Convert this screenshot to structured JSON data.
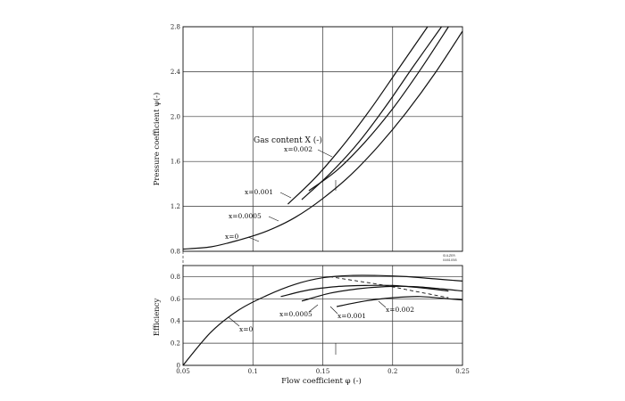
{
  "chart_data": [
    {
      "type": "line",
      "panel": "upper",
      "title": "",
      "xlabel": "",
      "ylabel": "Pressure coefficient ψ(-)",
      "xlim": [
        0.05,
        0.25
      ],
      "ylim": [
        0.8,
        2.8
      ],
      "yticks": [
        "0.8",
        "1.2",
        "1.6",
        "2.0",
        "2.4",
        "2.8"
      ],
      "grid": true,
      "legend_title": "Gas content X (-)",
      "series": [
        {
          "name": "x=0",
          "label": "x=0",
          "x": [
            0.05,
            0.07,
            0.09,
            0.11,
            0.13,
            0.15,
            0.17,
            0.19,
            0.21,
            0.23,
            0.25
          ],
          "y": [
            0.82,
            0.84,
            0.9,
            0.98,
            1.1,
            1.27,
            1.48,
            1.74,
            2.04,
            2.38,
            2.76
          ]
        },
        {
          "name": "x=0.0005",
          "label": "x=0.0005",
          "x": [
            0.14,
            0.16,
            0.18,
            0.2,
            0.22,
            0.24
          ],
          "y": [
            1.34,
            1.52,
            1.77,
            2.07,
            2.42,
            2.8
          ]
        },
        {
          "name": "x=0.001",
          "label": "x=0.001",
          "x": [
            0.135,
            0.155,
            0.175,
            0.195,
            0.215,
            0.235
          ],
          "y": [
            1.26,
            1.49,
            1.76,
            2.09,
            2.45,
            2.8
          ]
        },
        {
          "name": "x=0.002",
          "label": "x=0.002",
          "x": [
            0.125,
            0.145,
            0.165,
            0.185,
            0.205,
            0.225
          ],
          "y": [
            1.22,
            1.46,
            1.75,
            2.08,
            2.44,
            2.8
          ]
        }
      ]
    },
    {
      "type": "line",
      "panel": "lower",
      "title": "",
      "xlabel": "Flow coefficient φ (-)",
      "ylabel": "Efficiency",
      "xlim": [
        0.05,
        0.25
      ],
      "ylim": [
        0,
        0.9
      ],
      "xticks": [
        "0.05",
        "0.1",
        "0.15",
        "0.2",
        "0.25"
      ],
      "yticks": [
        "0",
        "0.2",
        "0.4",
        "0.6",
        "0.8"
      ],
      "grid": true,
      "series": [
        {
          "name": "x=0",
          "label": "x=0",
          "x": [
            0.05,
            0.07,
            0.09,
            0.11,
            0.13,
            0.15,
            0.17,
            0.19,
            0.21,
            0.23,
            0.25
          ],
          "y": [
            0.0,
            0.3,
            0.5,
            0.63,
            0.73,
            0.79,
            0.81,
            0.81,
            0.8,
            0.78,
            0.76
          ]
        },
        {
          "name": "x=0.0005",
          "label": "x=0.0005",
          "x": [
            0.12,
            0.14,
            0.16,
            0.18,
            0.2,
            0.22,
            0.24
          ],
          "y": [
            0.62,
            0.68,
            0.71,
            0.72,
            0.72,
            0.7,
            0.67
          ]
        },
        {
          "name": "x=0.001",
          "label": "x=0.001",
          "x": [
            0.135,
            0.155,
            0.175,
            0.195,
            0.215,
            0.235,
            0.25
          ],
          "y": [
            0.58,
            0.65,
            0.69,
            0.71,
            0.71,
            0.69,
            0.67
          ]
        },
        {
          "name": "x=0.002",
          "label": "x=0.002",
          "x": [
            0.16,
            0.18,
            0.2,
            0.22,
            0.24,
            0.25
          ],
          "y": [
            0.53,
            0.58,
            0.61,
            0.62,
            0.6,
            0.59
          ]
        }
      ],
      "dashed_line": {
        "x": [
          0.155,
          0.175,
          0.195,
          0.215,
          0.24
        ],
        "y": [
          0.8,
          0.76,
          0.72,
          0.67,
          0.61
        ]
      }
    }
  ],
  "annotations": {
    "legend_title": "Gas content X (-)",
    "upper_labels": [
      "x=0.002",
      "x=0.001",
      "x=0.0005",
      "x=0"
    ],
    "lower_labels": [
      "x=0.0005",
      "x=0.001",
      "x=0.002",
      "x=0"
    ],
    "stamp": [
      "SULZER",
      "0461058"
    ]
  }
}
